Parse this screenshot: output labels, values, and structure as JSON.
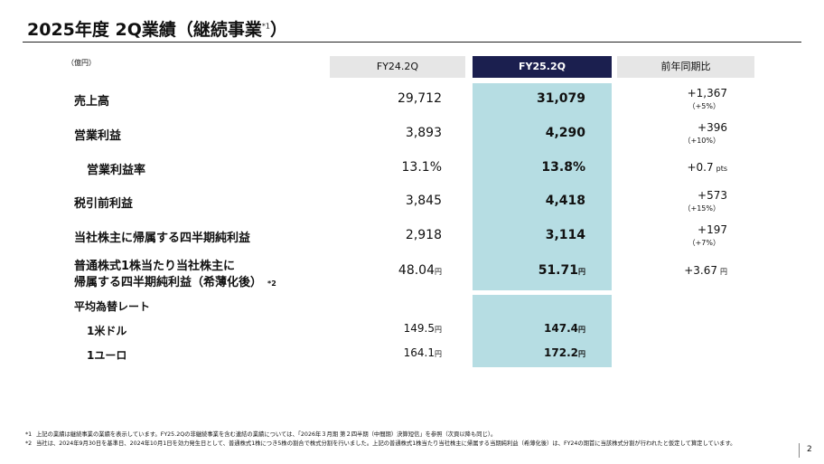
{
  "title": {
    "main": "2025年度 2Q業績（継続事業",
    "note": "*1",
    "close": "）"
  },
  "table": {
    "unit": "（億円）",
    "headers": [
      "FY24.2Q",
      "FY25.2Q",
      "前年同期比"
    ],
    "rows": [
      {
        "label": "売上高",
        "prev": {
          "value": "29,712"
        },
        "curr": {
          "value": "31,079"
        },
        "change": {
          "value": "+1,367",
          "sub": "（+5%）"
        }
      },
      {
        "label": "営業利益",
        "prev": {
          "value": "3,893"
        },
        "curr": {
          "value": "4,290"
        },
        "change": {
          "value": "+396",
          "sub": "（+10%）"
        }
      },
      {
        "label": "営業利益率",
        "indent": true,
        "prev": {
          "value": "13.1%"
        },
        "curr": {
          "value": "13.8%"
        },
        "change": {
          "value": "+0.7",
          "unit": "pts"
        }
      },
      {
        "label": "税引前利益",
        "prev": {
          "value": "3,845"
        },
        "curr": {
          "value": "4,418"
        },
        "change": {
          "value": "+573",
          "sub": "（+15%）"
        }
      },
      {
        "label": "当社株主に帰属する四半期純利益",
        "prev": {
          "value": "2,918"
        },
        "curr": {
          "value": "3,114"
        },
        "change": {
          "value": "+197",
          "sub": "（+7%）"
        }
      },
      {
        "label": "普通株式1株当たり当社株主に",
        "label2": "帰属する四半期純利益（希薄化後）",
        "note": "*2",
        "prev": {
          "value": "48.04",
          "unit": "円"
        },
        "curr": {
          "value": "51.71",
          "unit": "円"
        },
        "change": {
          "value": "+3.67",
          "unit": "円"
        }
      }
    ],
    "fx": {
      "heading": "平均為替レート",
      "rows": [
        {
          "label": "1米ドル",
          "prev": {
            "value": "149.5",
            "unit": "円"
          },
          "curr": {
            "value": "147.4",
            "unit": "円"
          }
        },
        {
          "label": "1ユーロ",
          "prev": {
            "value": "164.1",
            "unit": "円"
          },
          "curr": {
            "value": "172.2",
            "unit": "円"
          }
        }
      ]
    }
  },
  "footnotes": [
    {
      "mark": "*1",
      "text": "上記の業績は継続事業の業績を表示しています。FY25.2Qの非継続事業を含む連結の業績については、「2026年３月期 第２四半期（中間期）決算短信」を参照（次頁以降も同じ）。"
    },
    {
      "mark": "*2",
      "text": "当社は、2024年9月30日を基準日、2024年10月1日を効力発生日として、普通株式1株につき5株の割合で株式分割を行いました。上記の普通株式1株当たり当社株主に帰属する当期純利益（希薄化後）は、FY24の期首に当該株式分割が行われたと仮定して算定しています。"
    }
  ],
  "page_number": "2"
}
